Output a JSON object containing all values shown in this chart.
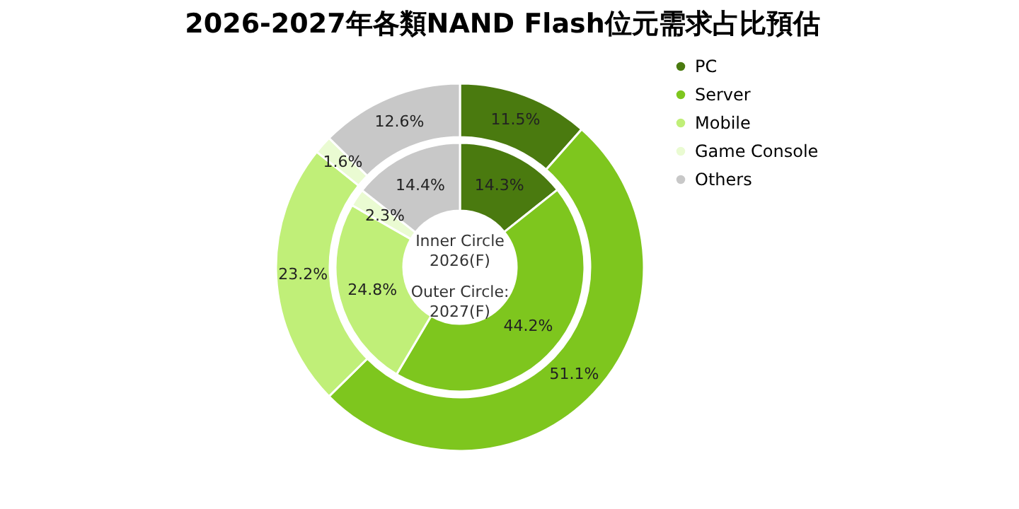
{
  "chart_data": {
    "type": "donut",
    "title": "2026-2027年各類NAND Flash位元需求占比預估",
    "categories": [
      "PC",
      "Server",
      "Mobile",
      "Game Console",
      "Others"
    ],
    "colors": [
      "#4a7a0f",
      "#7ec61e",
      "#c0ef78",
      "#eafbd2",
      "#c8c8c8"
    ],
    "series": [
      {
        "values": [
          14.3,
          44.2,
          24.8,
          2.3,
          14.4
        ],
        "value_labels": [
          "14.3%",
          "44.2%",
          "24.8%",
          "2.3%",
          "14.4%"
        ]
      },
      {
        "values": [
          11.5,
          51.1,
          23.2,
          1.6,
          12.6
        ],
        "value_labels": [
          "11.5%",
          "51.1%",
          "23.2%",
          "1.6%",
          "12.6%"
        ]
      }
    ],
    "annotations": [
      "Inner Circle\n2026(F)",
      "Outer Circle:\n2027(F)"
    ],
    "legend": "right"
  }
}
